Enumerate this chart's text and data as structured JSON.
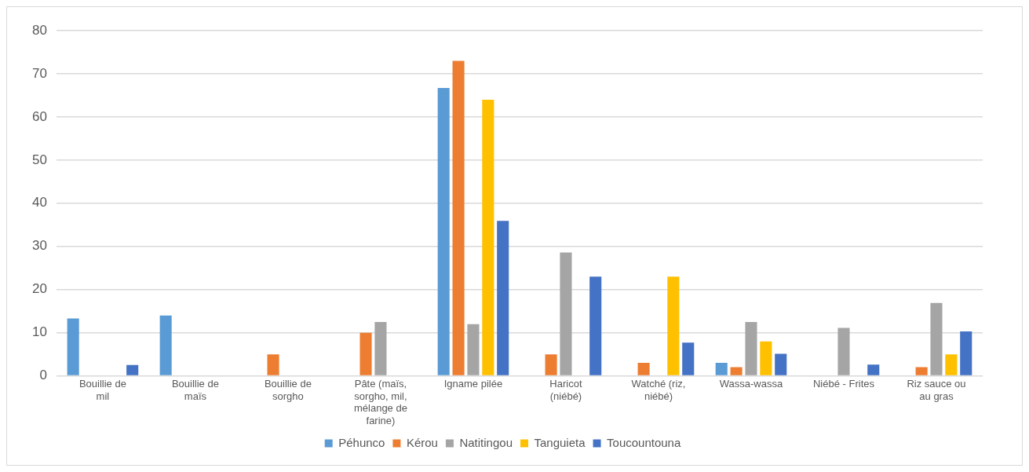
{
  "chart_data": {
    "type": "bar",
    "categories": [
      "Bouillie de mil",
      "Bouillie de maïs",
      "Bouillie de sorgho",
      "Pâte (maïs, sorgho, mil, mélange de farine)",
      "Igname pilée",
      "Haricot (niébé)",
      "Watché (riz, niébé)",
      "Wassa-wassa",
      "Niébé - Frites",
      "Riz sauce ou au gras"
    ],
    "series": [
      {
        "name": "Péhunco",
        "color": "#5b9bd5",
        "values": [
          13.3,
          14,
          0,
          0,
          66.7,
          0,
          0,
          3,
          0,
          0
        ]
      },
      {
        "name": "Kérou",
        "color": "#ed7d31",
        "values": [
          0,
          0,
          5,
          10,
          73,
          5,
          3,
          2,
          0,
          2
        ]
      },
      {
        "name": "Natitingou",
        "color": "#a5a5a5",
        "values": [
          0,
          0,
          0,
          12.5,
          12,
          28.6,
          0,
          12.5,
          11.1,
          16.9
        ]
      },
      {
        "name": "Tanguieta",
        "color": "#ffc000",
        "values": [
          0,
          0,
          0,
          0,
          64,
          0,
          23,
          8,
          0,
          5
        ]
      },
      {
        "name": "Toucountouna",
        "color": "#4472c4",
        "values": [
          2.5,
          0,
          0,
          0,
          35.9,
          23,
          7.7,
          5.1,
          2.6,
          10.3
        ]
      }
    ],
    "ylim": [
      0,
      80
    ],
    "yticks": [
      0,
      10,
      20,
      30,
      40,
      50,
      60,
      70,
      80
    ],
    "grid": "y",
    "legend": "bottom"
  }
}
